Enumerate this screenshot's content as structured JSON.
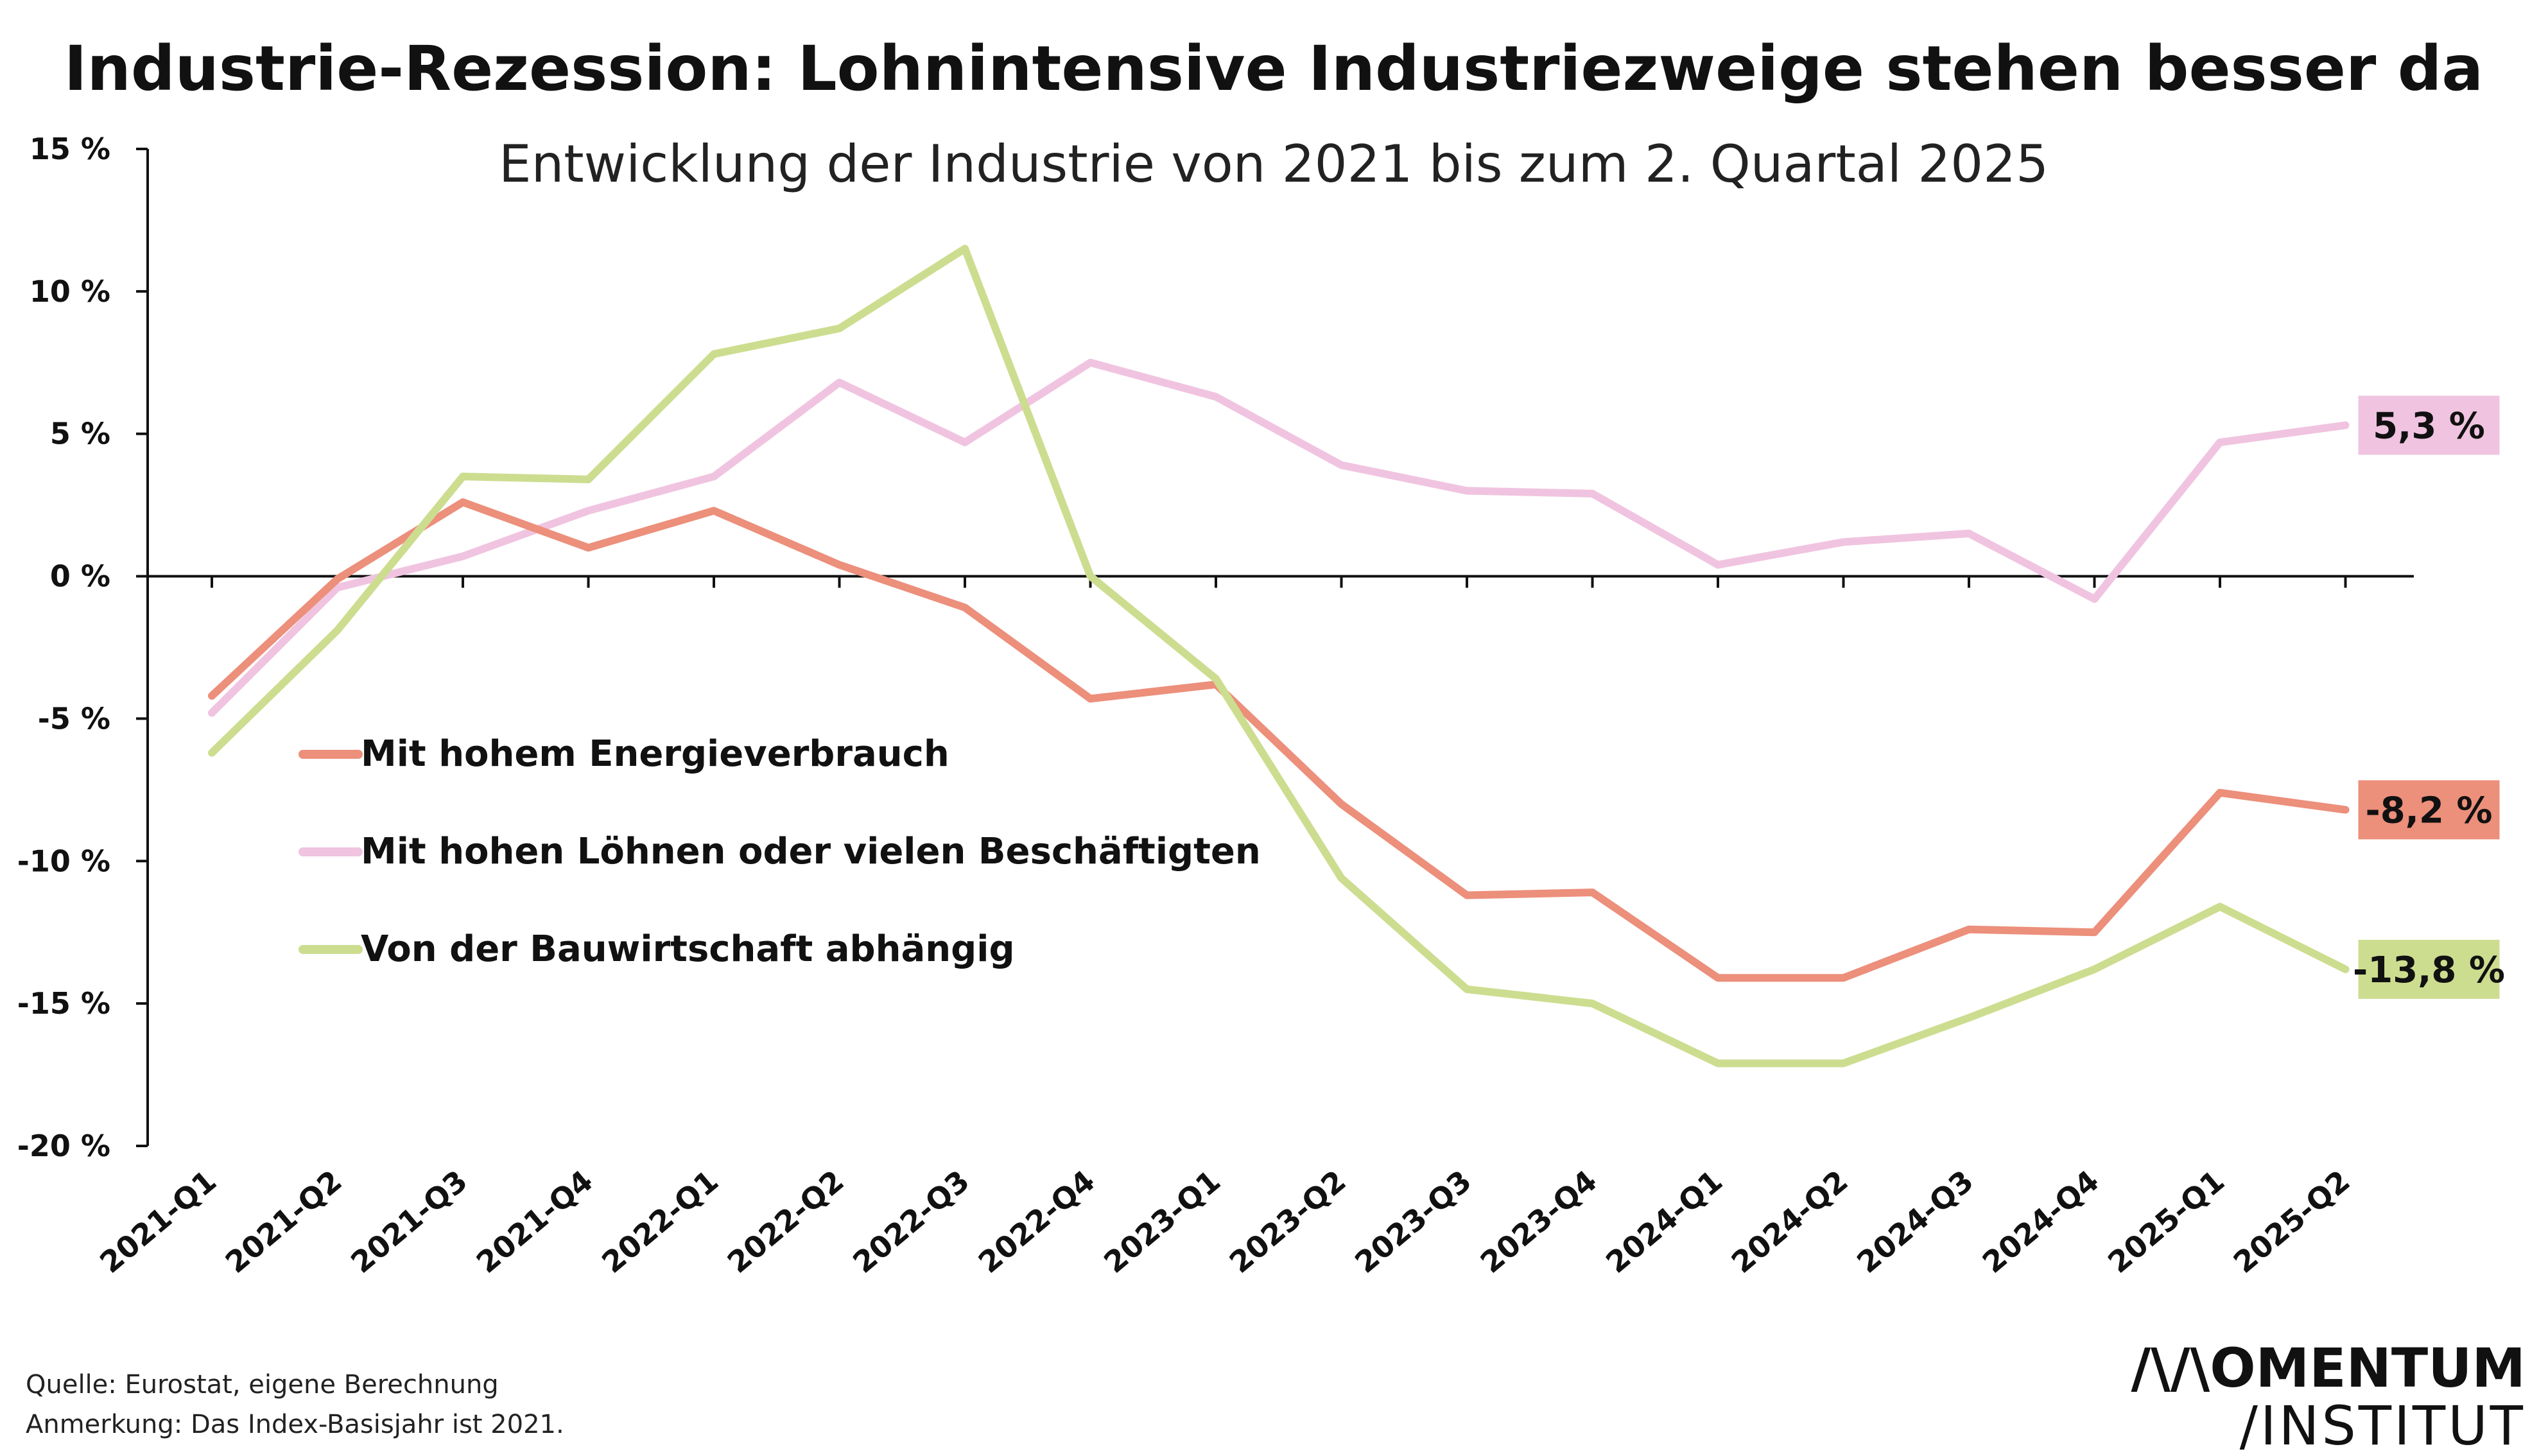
{
  "chart_data": {
    "type": "line",
    "title": "Industrie-Rezession: Lohnintensive Industriezweige stehen besser da",
    "subtitle": "Entwicklung der Industrie von 2021 bis zum 2. Quartal 2025",
    "xlabel": "",
    "ylabel": "",
    "categories": [
      "2021-Q1",
      "2021-Q2",
      "2021-Q3",
      "2021-Q4",
      "2022-Q1",
      "2022-Q2",
      "2022-Q3",
      "2022-Q4",
      "2023-Q1",
      "2023-Q2",
      "2023-Q3",
      "2023-Q4",
      "2024-Q1",
      "2024-Q2",
      "2024-Q3",
      "2024-Q4",
      "2025-Q1",
      "2025-Q2"
    ],
    "ylim": [
      -20,
      15
    ],
    "yticks": [
      15,
      10,
      5,
      0,
      -5,
      -10,
      -15,
      -20
    ],
    "ytick_labels": [
      "15 %",
      "10 %",
      "5 %",
      "0 %",
      "-5 %",
      "-10 %",
      "-15 %",
      "-20 %"
    ],
    "grid": false,
    "legend_position": "left",
    "series": [
      {
        "name": "Mit hohem Energieverbrauch",
        "color": "#ec8f7b",
        "values": [
          -4.2,
          -0.1,
          2.6,
          1.0,
          2.3,
          0.4,
          -1.1,
          -4.3,
          -3.8,
          -8.0,
          -11.2,
          -11.1,
          -14.1,
          -14.1,
          -12.4,
          -12.5,
          -7.6,
          -8.2
        ],
        "end_label": "-8,2 %"
      },
      {
        "name": "Mit hohen Löhnen oder vielen Beschäftigten",
        "color": "#f0c4e0",
        "values": [
          -4.8,
          -0.4,
          0.7,
          2.3,
          3.5,
          6.8,
          4.7,
          7.5,
          6.3,
          3.9,
          3.0,
          2.9,
          0.4,
          1.2,
          1.5,
          -0.8,
          4.7,
          5.3
        ],
        "end_label": "5,3 %"
      },
      {
        "name": "Von der Bauwirtschaft abhängig",
        "color": "#cddd90",
        "values": [
          -6.2,
          -1.9,
          3.5,
          3.4,
          7.8,
          8.7,
          11.5,
          0.0,
          -3.6,
          -10.6,
          -14.5,
          -15.0,
          -17.1,
          -17.1,
          -15.5,
          -13.8,
          -11.6,
          -13.8
        ],
        "end_label": "-13,8 %"
      }
    ]
  },
  "footer": {
    "source": "Quelle: Eurostat, eigene Berechnung",
    "note": "Anmerkung: Das Index-Basisjahr ist 2021."
  },
  "logo": {
    "line1": "/\\/\\OMENTUM",
    "line2": "/INSTITUT"
  }
}
